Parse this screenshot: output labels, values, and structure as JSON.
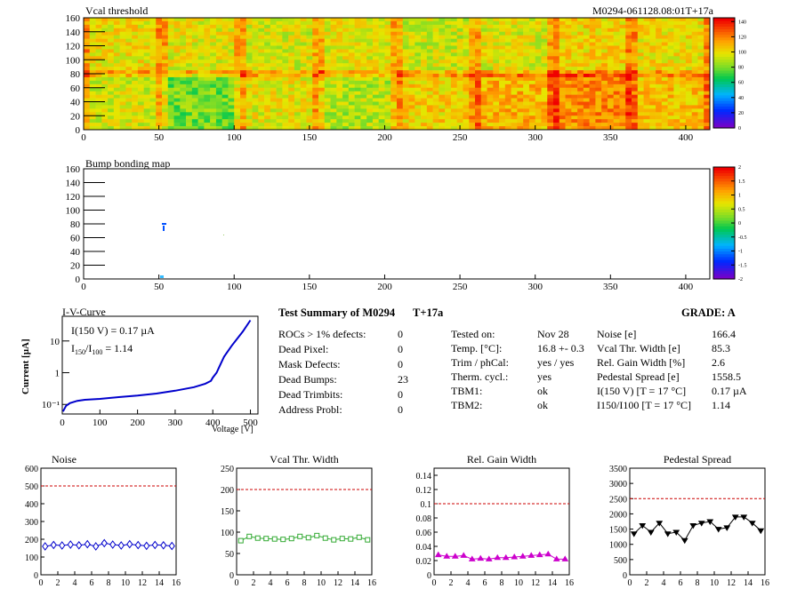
{
  "heatmap": {
    "title": "Vcal threshold",
    "run_label": "M0294-061128.08:01T+17a",
    "xlim": [
      0,
      416
    ],
    "ylim": [
      0,
      160
    ],
    "x_ticks": [
      "0",
      "50",
      "100",
      "150",
      "200",
      "250",
      "300",
      "350",
      "400"
    ],
    "y_ticks": [
      "0",
      "20",
      "40",
      "60",
      "80",
      "100",
      "120",
      "140",
      "160"
    ],
    "colorbar_ticks": [
      "0",
      "20",
      "40",
      "60",
      "80",
      "100",
      "120",
      "140"
    ],
    "colorbar_range": [
      0,
      145
    ]
  },
  "bumpmap": {
    "title": "Bump bonding map",
    "xlim": [
      0,
      416
    ],
    "ylim": [
      0,
      160
    ],
    "x_ticks": [
      "0",
      "50",
      "100",
      "150",
      "200",
      "250",
      "300",
      "350",
      "400"
    ],
    "y_ticks": [
      "0",
      "20",
      "40",
      "60",
      "80",
      "100",
      "120",
      "140",
      "160"
    ],
    "colorbar_ticks": [
      "-2",
      "-1.5",
      "-1",
      "-0.5",
      "0",
      "0.5",
      "1",
      "1.5",
      "2"
    ],
    "colorbar_range": [
      -2,
      2
    ]
  },
  "iv": {
    "title": "I-V-Curve",
    "ylabel": "Current [µA]",
    "xlabel": "Voltage [V]",
    "annot1": "I(150 V) = 0.17 µA",
    "annot2_pre": "I",
    "annot2_sub1": "150",
    "annot2_mid": "/I",
    "annot2_sub2": "100",
    "annot2_val": " =  1.14",
    "x_ticks": [
      "0",
      "100",
      "200",
      "300",
      "400",
      "500"
    ],
    "y_ticks": [
      "10⁻¹",
      "1",
      "10"
    ],
    "xlim": [
      0,
      520
    ],
    "ylim_log": [
      0.05,
      60
    ],
    "chart_data": {
      "type": "line",
      "x": [
        2,
        10,
        20,
        40,
        60,
        100,
        150,
        200,
        250,
        300,
        350,
        380,
        395,
        400,
        410,
        420,
        430,
        450,
        480,
        500
      ],
      "y": [
        0.06,
        0.09,
        0.11,
        0.13,
        0.14,
        0.15,
        0.17,
        0.19,
        0.22,
        0.27,
        0.35,
        0.45,
        0.55,
        0.7,
        1.0,
        1.8,
        3.2,
        7,
        20,
        45
      ]
    }
  },
  "summary": {
    "title": "Test Summary of M0294",
    "temp_tag": "T+17a",
    "grade": "GRADE:  A",
    "col1": [
      {
        "label": "ROCs > 1% defects:",
        "value": "0"
      },
      {
        "label": "Dead Pixel:",
        "value": "0"
      },
      {
        "label": "Mask Defects:",
        "value": "0"
      },
      {
        "label": "Dead Bumps:",
        "value": "23"
      },
      {
        "label": "Dead Trimbits:",
        "value": "0"
      },
      {
        "label": "Address Probl:",
        "value": "0"
      }
    ],
    "col2": [
      {
        "label": "Tested on:",
        "value": "Nov 28"
      },
      {
        "label": "Temp. [°C]:",
        "value": "16.8 +- 0.3"
      },
      {
        "label": "Trim / phCal:",
        "value": "yes / yes"
      },
      {
        "label": "Therm. cycl.:",
        "value": "yes"
      },
      {
        "label": "TBM1:",
        "value": "ok"
      },
      {
        "label": "TBM2:",
        "value": "ok"
      }
    ],
    "col3": [
      {
        "label": "Noise [e]",
        "value": "166.4"
      },
      {
        "label": "Vcal Thr. Width [e]",
        "value": "85.3"
      },
      {
        "label": "Rel. Gain Width [%]",
        "value": "2.6"
      },
      {
        "label": "Pedestal Spread [e]",
        "value": "1558.5"
      },
      {
        "label": "I(150 V) [T = 17 °C]",
        "value": "0.17 µA"
      },
      {
        "label": "I150/I100  [T = 17 °C]",
        "value": "1.14"
      }
    ]
  },
  "small_charts": [
    {
      "title": "Noise",
      "color": "#0000cc",
      "marker": "diamond",
      "xlim": [
        0,
        16
      ],
      "ylim": [
        0,
        600
      ],
      "limit": 500,
      "y_ticks": [
        "0",
        "100",
        "200",
        "300",
        "400",
        "500",
        "600"
      ],
      "x_ticks": [
        "0",
        "2",
        "4",
        "6",
        "8",
        "10",
        "12",
        "14",
        "16"
      ],
      "chart_data": {
        "type": "line",
        "x": [
          0.5,
          1.5,
          2.5,
          3.5,
          4.5,
          5.5,
          6.5,
          7.5,
          8.5,
          9.5,
          10.5,
          11.5,
          12.5,
          13.5,
          14.5,
          15.5
        ],
        "values": [
          160,
          168,
          165,
          170,
          166,
          172,
          160,
          178,
          170,
          165,
          172,
          167,
          163,
          168,
          166,
          162
        ]
      }
    },
    {
      "title": "Vcal Thr. Width",
      "color": "#33aa33",
      "marker": "square",
      "xlim": [
        0,
        16
      ],
      "ylim": [
        0,
        250
      ],
      "limit": 200,
      "y_ticks": [
        "0",
        "50",
        "100",
        "150",
        "200",
        "250"
      ],
      "x_ticks": [
        "0",
        "2",
        "4",
        "6",
        "8",
        "10",
        "12",
        "14",
        "16"
      ],
      "chart_data": {
        "type": "line",
        "x": [
          0.5,
          1.5,
          2.5,
          3.5,
          4.5,
          5.5,
          6.5,
          7.5,
          8.5,
          9.5,
          10.5,
          11.5,
          12.5,
          13.5,
          14.5,
          15.5
        ],
        "values": [
          80,
          90,
          86,
          85,
          84,
          83,
          85,
          90,
          87,
          92,
          86,
          82,
          85,
          84,
          88,
          82
        ]
      }
    },
    {
      "title": "Rel. Gain Width",
      "color": "#cc00cc",
      "marker": "triangle",
      "xlim": [
        0,
        16
      ],
      "ylim": [
        0,
        0.15
      ],
      "limit": 0.1,
      "y_ticks": [
        "0",
        "0.02",
        "0.04",
        "0.06",
        "0.08",
        "0.1",
        "0.12",
        "0.14"
      ],
      "x_ticks": [
        "0",
        "2",
        "4",
        "6",
        "8",
        "10",
        "12",
        "14",
        "16"
      ],
      "chart_data": {
        "type": "line",
        "x": [
          0.5,
          1.5,
          2.5,
          3.5,
          4.5,
          5.5,
          6.5,
          7.5,
          8.5,
          9.5,
          10.5,
          11.5,
          12.5,
          13.5,
          14.5,
          15.5
        ],
        "values": [
          0.028,
          0.026,
          0.026,
          0.027,
          0.022,
          0.023,
          0.022,
          0.024,
          0.024,
          0.025,
          0.026,
          0.027,
          0.028,
          0.029,
          0.022,
          0.022
        ]
      }
    },
    {
      "title": "Pedestal Spread",
      "color": "#000000",
      "marker": "triangle-down",
      "xlim": [
        0,
        16
      ],
      "ylim": [
        0,
        3500
      ],
      "limit": 2500,
      "y_ticks": [
        "0",
        "500",
        "1000",
        "1500",
        "2000",
        "2500",
        "3000",
        "3500"
      ],
      "x_ticks": [
        "0",
        "2",
        "4",
        "6",
        "8",
        "10",
        "12",
        "14",
        "16"
      ],
      "chart_data": {
        "type": "line",
        "x": [
          0.5,
          1.5,
          2.5,
          3.5,
          4.5,
          5.5,
          6.5,
          7.5,
          8.5,
          9.5,
          10.5,
          11.5,
          12.5,
          13.5,
          14.5,
          15.5
        ],
        "values": [
          1350,
          1620,
          1400,
          1700,
          1350,
          1400,
          1130,
          1620,
          1700,
          1750,
          1500,
          1550,
          1900,
          1900,
          1700,
          1450
        ]
      }
    }
  ]
}
